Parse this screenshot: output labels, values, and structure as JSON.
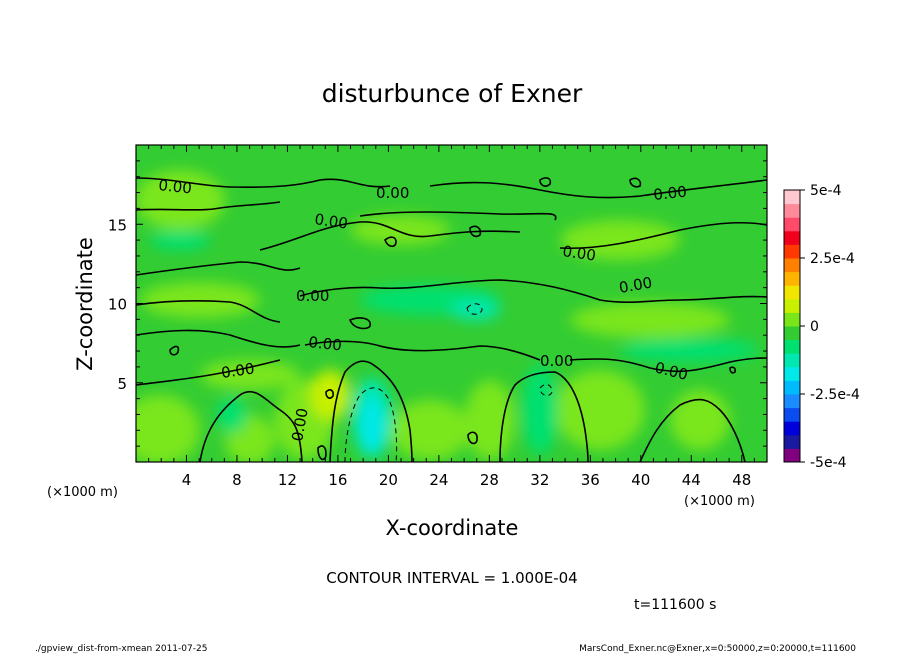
{
  "chart_data": {
    "type": "heatmap",
    "title": "disturbunce of Exner",
    "xlabel": "X-coordinate",
    "ylabel": "Z-coordinate",
    "x_unit": "(×1000 m)",
    "y_unit": "(×1000 m)",
    "xlim": [
      0,
      50
    ],
    "ylim": [
      0,
      20
    ],
    "x_ticks": [
      "4",
      "8",
      "12",
      "16",
      "20",
      "24",
      "28",
      "32",
      "36",
      "40",
      "44",
      "48"
    ],
    "y_ticks": [
      "5",
      "10",
      "15"
    ],
    "colorbar": {
      "min": -0.0005,
      "max": 0.0005,
      "labels": [
        "5e-4",
        "2.5e-4",
        "0",
        "-2.5e-4",
        "-5e-4"
      ],
      "colors": [
        "#800080",
        "#1a1aa0",
        "#0000dd",
        "#0a4cf0",
        "#1a8cff",
        "#00bcff",
        "#00e8e8",
        "#00e8b0",
        "#00e070",
        "#33cc33",
        "#7ae61a",
        "#c8f000",
        "#f0e600",
        "#ffb400",
        "#ff8000",
        "#ff3a00",
        "#f0001a",
        "#ff4a6a",
        "#ff8a9a",
        "#ffc8d0"
      ]
    },
    "contour_label": "0.00",
    "contour_interval_text": "CONTOUR INTERVAL = 1.000E-04",
    "time_text": "t=111600 s",
    "footer_left": "./gpview_dist-from-xmean  2011-07-25",
    "footer_right": "MarsCond_Exner.nc@Exner,x=0:50000,z=0:20000,t=111600"
  }
}
